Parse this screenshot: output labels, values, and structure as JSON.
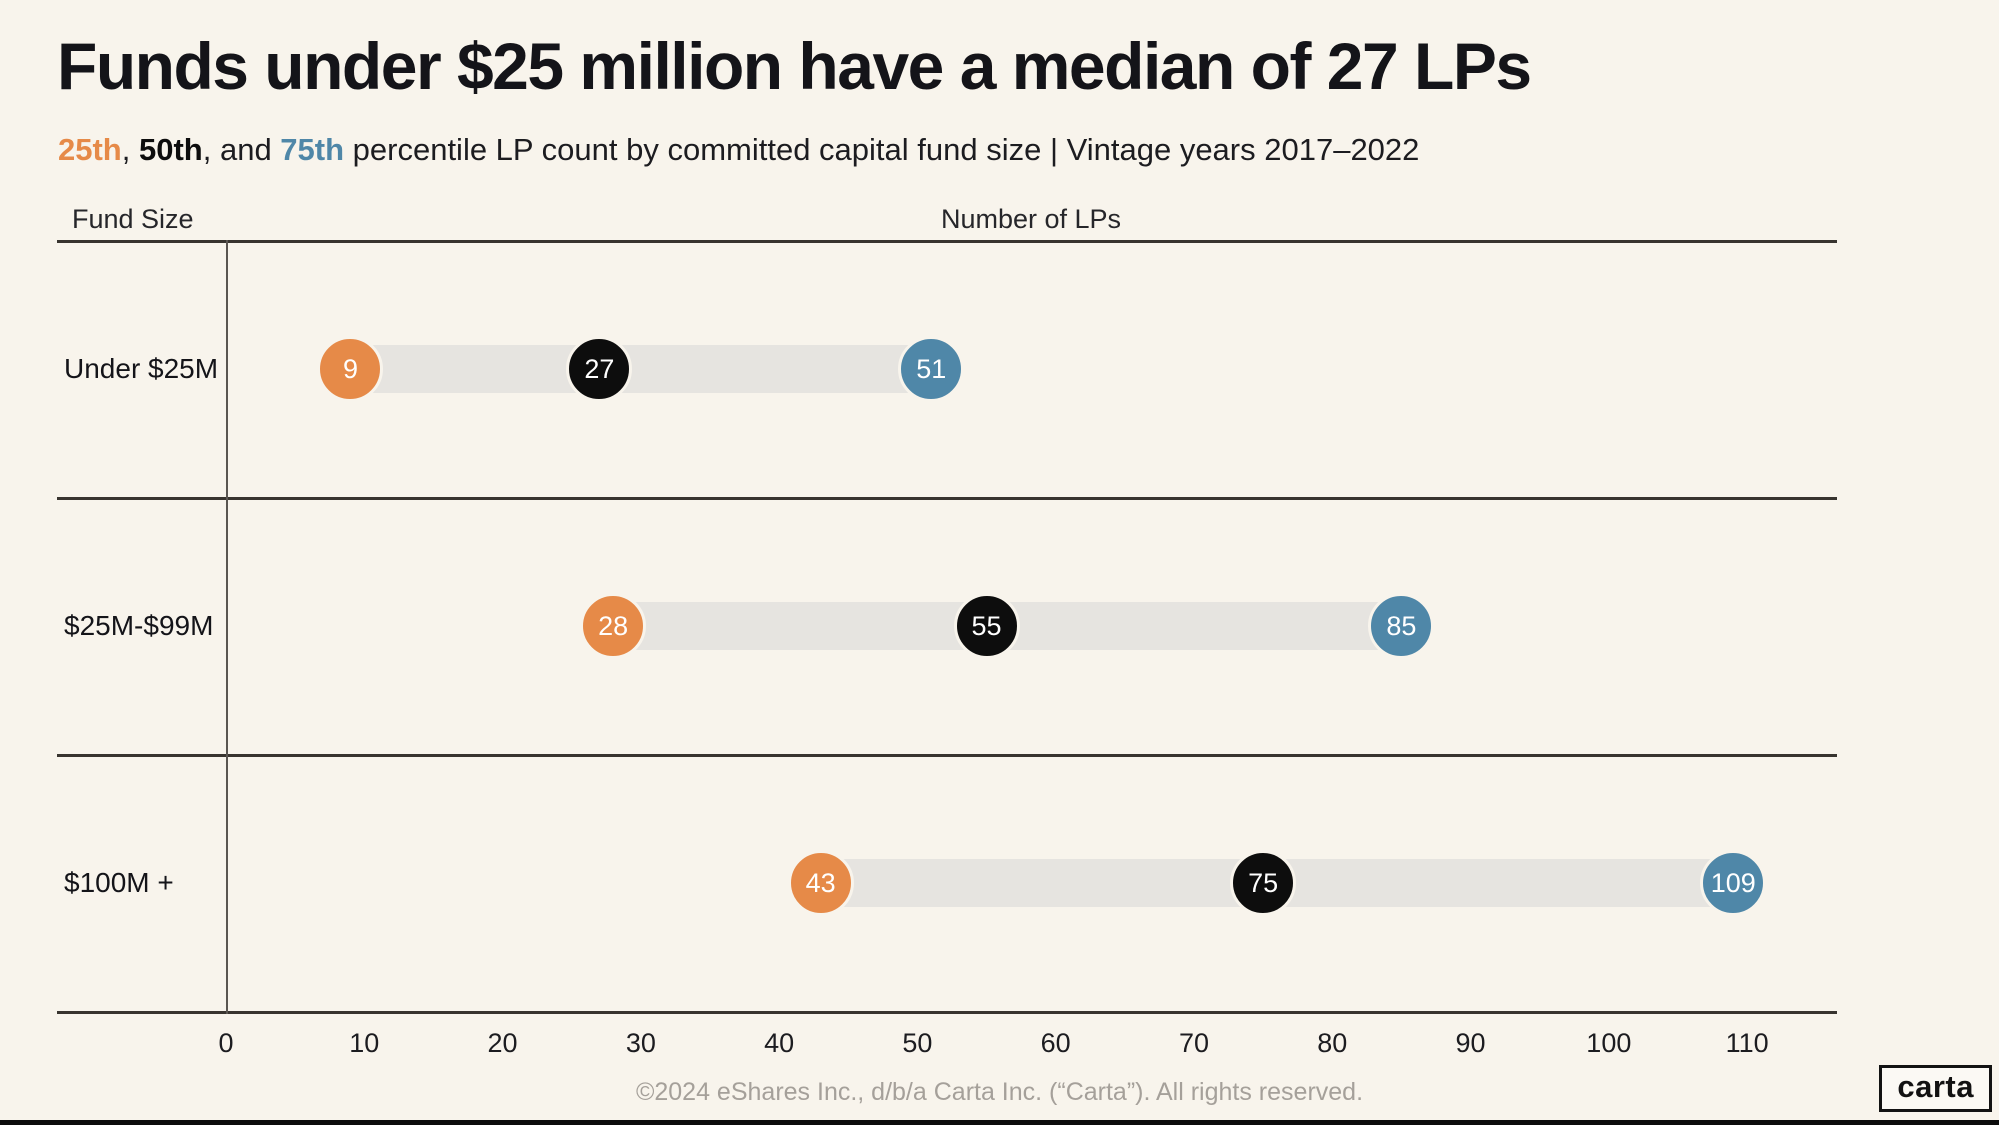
{
  "header": {
    "title": "Funds under $25 million have a median of 27 LPs",
    "subtitle": {
      "p25": "25th",
      "comma1": ", ",
      "p50": "50th",
      "comma2": ", and ",
      "p75": "75th",
      "rest": " percentile LP count by committed capital fund size | Vintage years 2017–2022"
    }
  },
  "chart_data": {
    "type": "dumbbell",
    "title": "Funds under $25 million have a median of 27 LPs",
    "xlabel": "Number of LPs",
    "ylabel": "Fund Size",
    "categories": [
      "Under $25M",
      "$25M-$99M",
      "$100M +"
    ],
    "series": [
      {
        "name": "25th percentile",
        "color": "#e68a48",
        "values": [
          9,
          28,
          43
        ]
      },
      {
        "name": "50th percentile",
        "color": "#0d0d0d",
        "values": [
          27,
          55,
          75
        ]
      },
      {
        "name": "75th percentile",
        "color": "#4f87a8",
        "values": [
          51,
          85,
          109
        ]
      }
    ],
    "xlim": [
      0,
      116.5
    ],
    "x_ticks": [
      0,
      10,
      20,
      30,
      40,
      50,
      60,
      70,
      80,
      90,
      100,
      110
    ],
    "grid": false,
    "legend": "inline-subtitle"
  },
  "colors": {
    "orange": "#e68a48",
    "black": "#0d0d0d",
    "blue": "#4f87a8",
    "background": "#f8f4ec",
    "range_bar": "#e6e4e0"
  },
  "footer": {
    "copyright": "©2024 eShares Inc., d/b/a Carta Inc. (“Carta”). All rights reserved.",
    "logo": "carta"
  }
}
